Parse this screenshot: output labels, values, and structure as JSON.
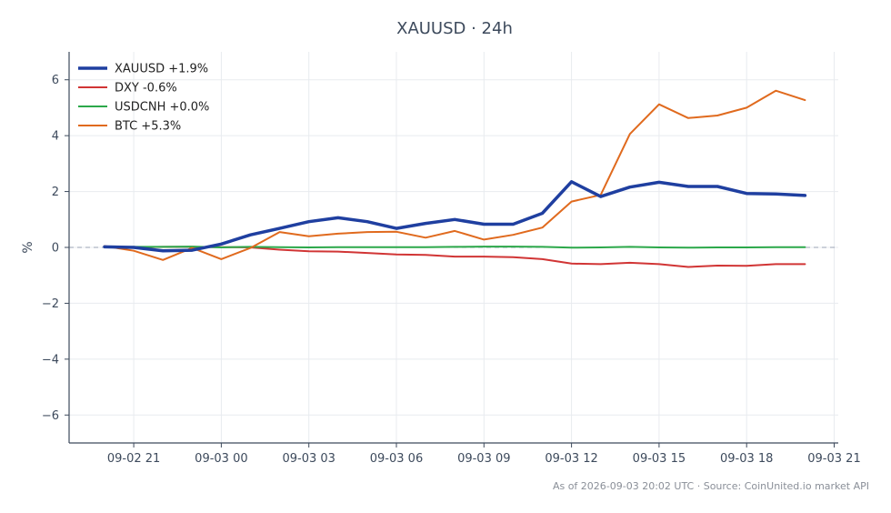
{
  "chart_data": {
    "type": "line",
    "title": "XAUUSD · 24h",
    "ylabel": "%",
    "xlabel": "",
    "ylim": [
      -7,
      7
    ],
    "yticks": [
      -6,
      -4,
      -2,
      0,
      2,
      4,
      6
    ],
    "ytick_labels": [
      "−6",
      "−4",
      "−2",
      "0",
      "2",
      "4",
      "6"
    ],
    "xticks": [
      "09-02 21",
      "09-03 00",
      "09-03 03",
      "09-03 06",
      "09-03 09",
      "09-03 12",
      "09-03 15",
      "09-03 18",
      "09-03 21"
    ],
    "x": [
      "09-02 20",
      "09-02 21",
      "09-02 22",
      "09-02 23",
      "09-03 00",
      "09-03 01",
      "09-03 02",
      "09-03 03",
      "09-03 04",
      "09-03 05",
      "09-03 06",
      "09-03 07",
      "09-03 08",
      "09-03 09",
      "09-03 10",
      "09-03 11",
      "09-03 12",
      "09-03 13",
      "09-03 14",
      "09-03 15",
      "09-03 16",
      "09-03 17",
      "09-03 18",
      "09-03 19",
      "09-03 20"
    ],
    "reference_line": 0,
    "grid": true,
    "legend_position": "top-left",
    "series": [
      {
        "name": "XAUUSD +1.9%",
        "color": "#1f3fa0",
        "emphasis": true,
        "values": [
          0.02,
          0.0,
          -0.12,
          -0.1,
          0.12,
          0.45,
          0.68,
          0.92,
          1.06,
          0.92,
          0.68,
          0.86,
          1.0,
          0.83,
          0.83,
          1.22,
          2.35,
          1.82,
          2.16,
          2.33,
          2.18,
          2.18,
          1.93,
          1.91,
          1.86
        ]
      },
      {
        "name": "DXY -0.6%",
        "color": "#d13535",
        "emphasis": false,
        "values": [
          0.0,
          0.0,
          0.02,
          0.02,
          0.01,
          0.0,
          -0.08,
          -0.14,
          -0.15,
          -0.2,
          -0.25,
          -0.27,
          -0.33,
          -0.33,
          -0.35,
          -0.42,
          -0.58,
          -0.6,
          -0.55,
          -0.6,
          -0.7,
          -0.65,
          -0.66,
          -0.6,
          -0.6
        ]
      },
      {
        "name": "USDCNH +0.0%",
        "color": "#2ca84a",
        "emphasis": false,
        "values": [
          0.0,
          0.02,
          0.02,
          0.03,
          0.0,
          0.02,
          0.01,
          0.0,
          0.01,
          0.01,
          0.01,
          0.01,
          0.02,
          0.03,
          0.03,
          0.02,
          -0.01,
          0.0,
          0.02,
          0.0,
          -0.01,
          0.0,
          0.0,
          0.01,
          0.01
        ]
      },
      {
        "name": "BTC +5.3%",
        "color": "#e06a1e",
        "emphasis": false,
        "values": [
          0.05,
          -0.12,
          -0.45,
          -0.02,
          -0.42,
          -0.02,
          0.55,
          0.4,
          0.49,
          0.55,
          0.56,
          0.35,
          0.59,
          0.28,
          0.45,
          0.71,
          1.64,
          1.88,
          4.06,
          5.12,
          4.63,
          4.72,
          5.0,
          5.61,
          5.27
        ]
      }
    ],
    "footer": "As of 2026-09-03 20:02 UTC · Source: CoinUnited.io market API"
  },
  "colors": {
    "axis": "#3d4a5c",
    "grid": "#e8ebef",
    "zero_line": "#9aa3b5"
  }
}
